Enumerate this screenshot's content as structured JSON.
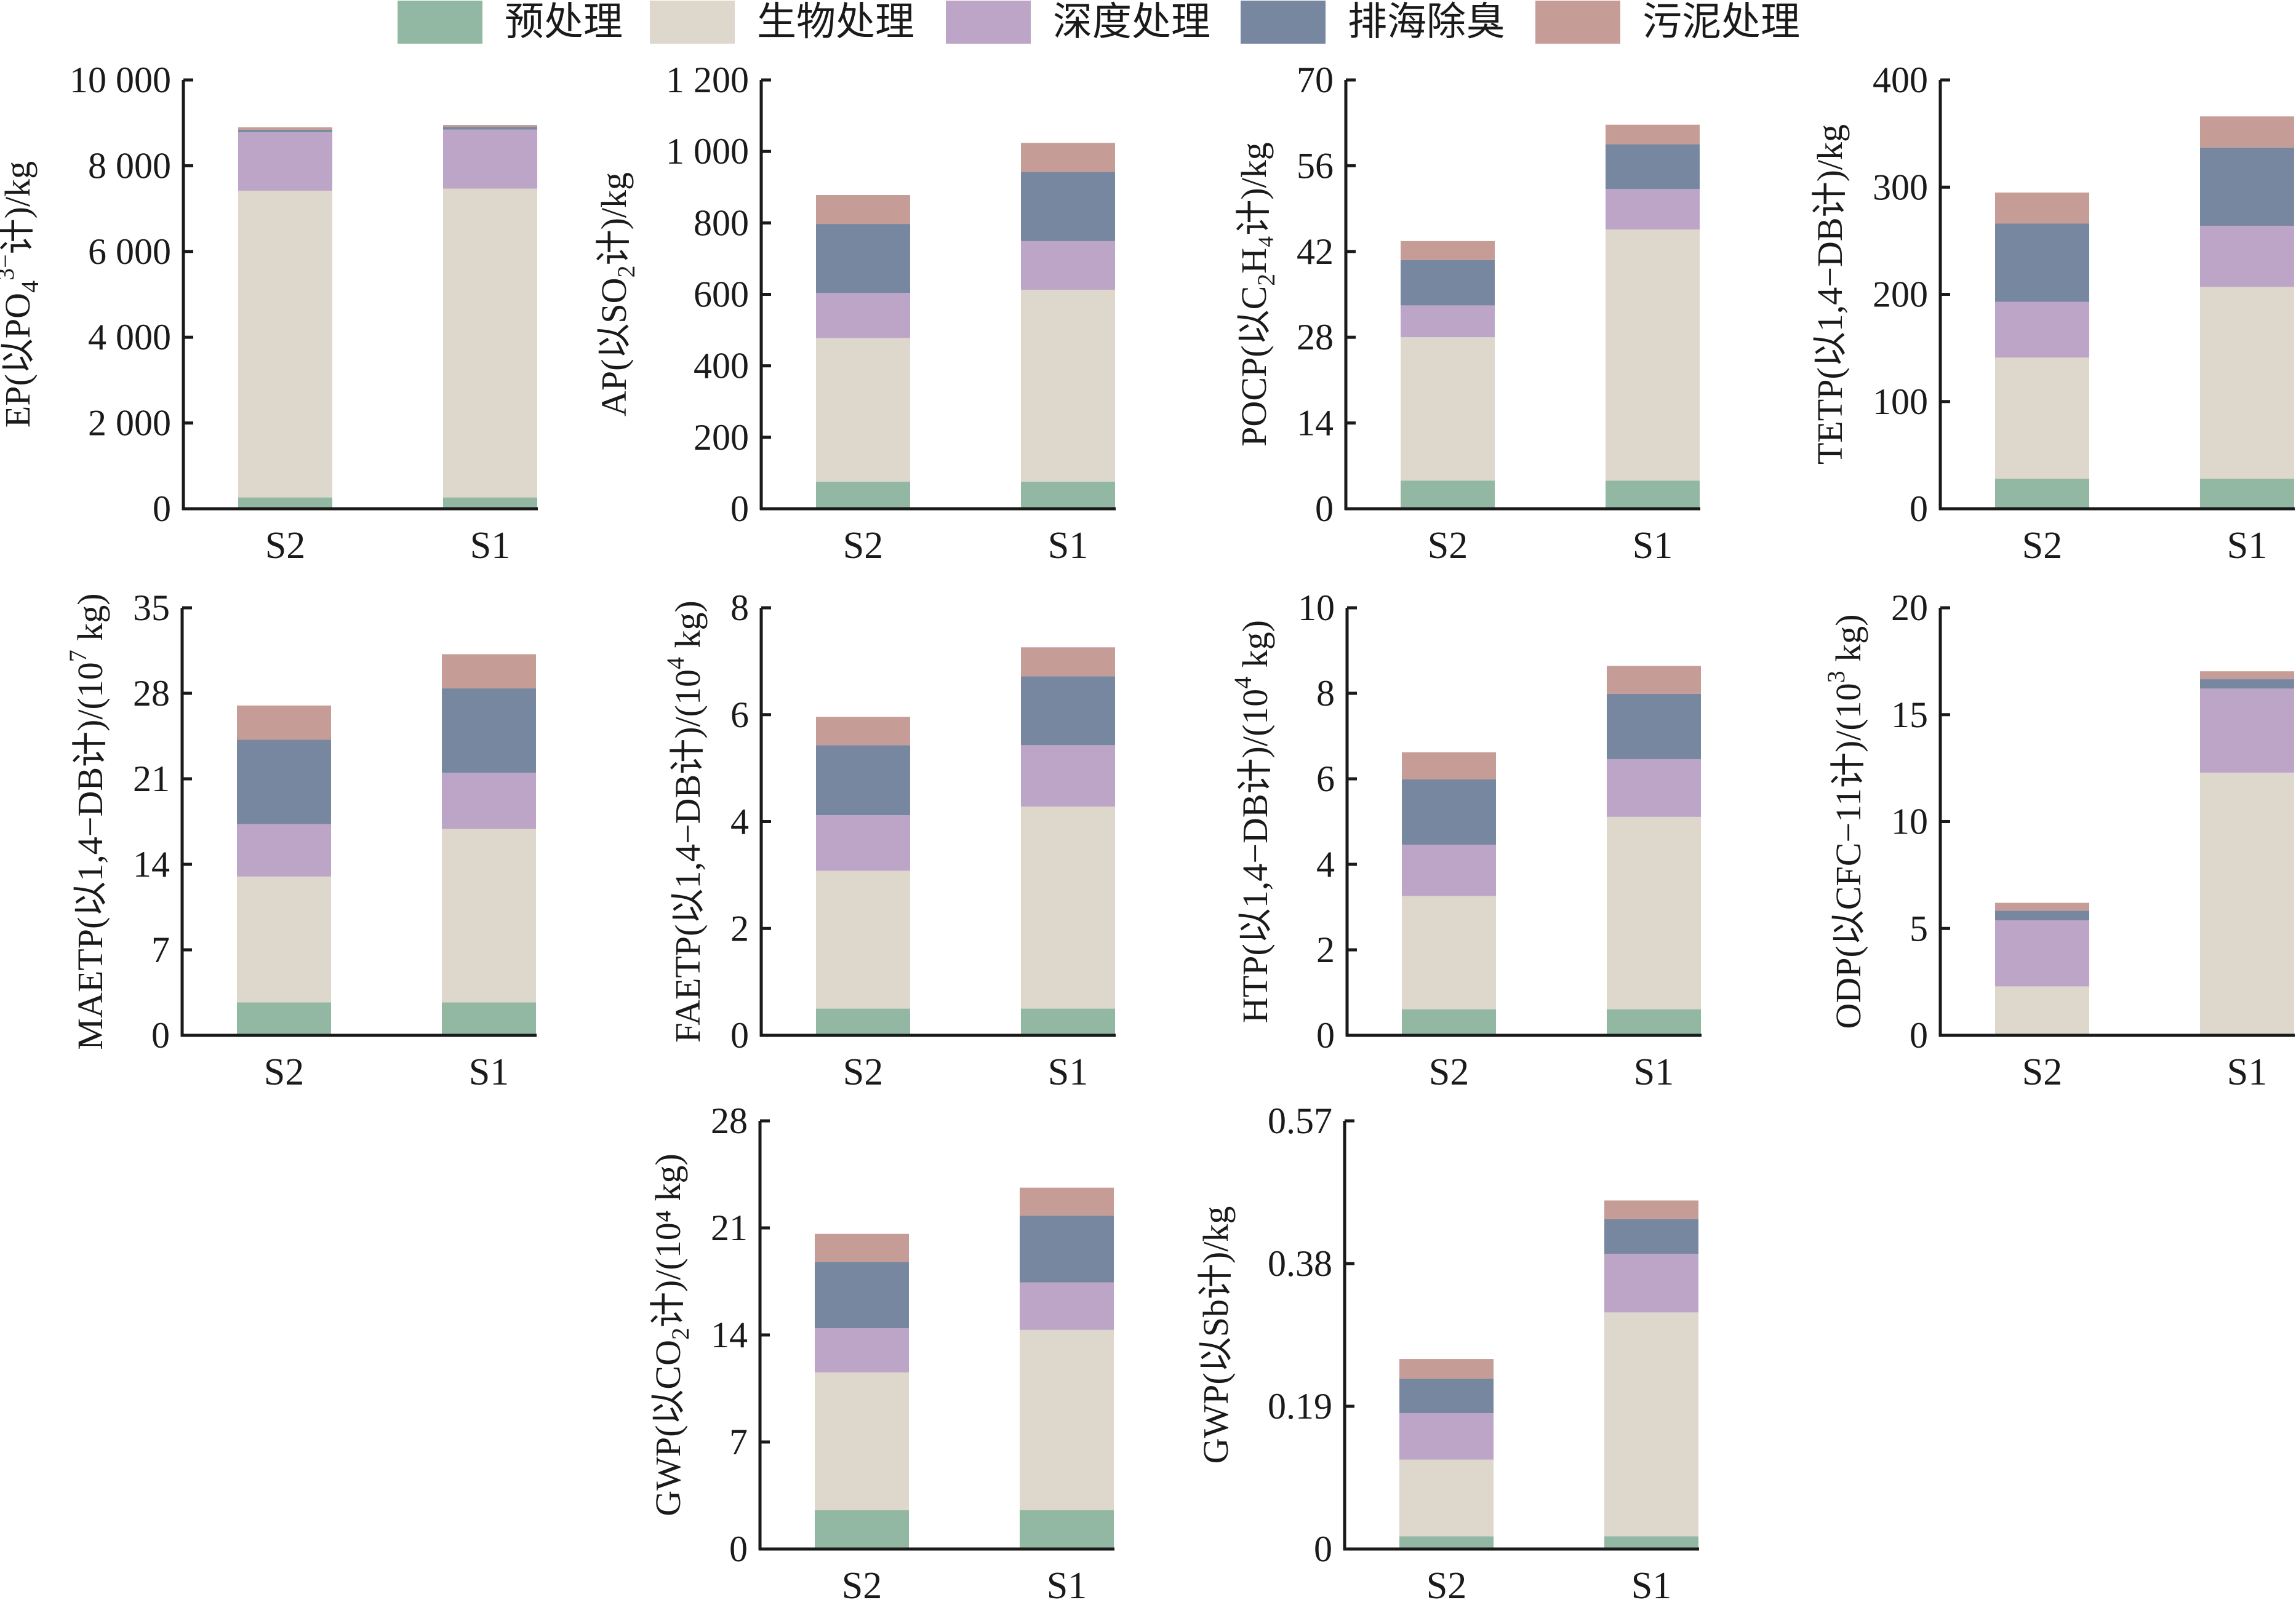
{
  "chart_data": {
    "type": "bar",
    "stacked": true,
    "legend": {
      "placement": "top",
      "entries": [
        {
          "name": "预处理",
          "color": "#92b8a3"
        },
        {
          "name": "生物处理",
          "color": "#ddd7cc"
        },
        {
          "name": "深度处理",
          "color": "#bca5c6"
        },
        {
          "name": "排海除臭",
          "color": "#76879f"
        },
        {
          "name": "污泥处理",
          "color": "#c59d96"
        }
      ]
    },
    "categories": [
      "S2",
      "S1"
    ],
    "panels": [
      {
        "id": "EP",
        "ylabel": {
          "prefix": "EP(以PO",
          "sub": "4",
          "sup": "3−",
          "suffix": "计)/kg"
        },
        "ylim": [
          0,
          10000
        ],
        "yticks": [
          "0",
          "2 000",
          "4 000",
          "6 000",
          "8 000",
          "10 000"
        ],
        "ytick_values": [
          0,
          2000,
          4000,
          6000,
          8000,
          10000
        ],
        "series": [
          {
            "name": "预处理",
            "values": [
              264,
              264
            ]
          },
          {
            "name": "生物处理",
            "values": [
              7154,
              7203
            ]
          },
          {
            "name": "深度处理",
            "values": [
              1370,
              1378
            ]
          },
          {
            "name": "排海除臭",
            "values": [
              49,
              58
            ]
          },
          {
            "name": "污泥处理",
            "values": [
              58,
              49
            ]
          }
        ]
      },
      {
        "id": "AP",
        "ylabel": {
          "prefix": "AP(以SO",
          "sub": "2",
          "sup": "",
          "suffix": "计)/kg"
        },
        "ylim": [
          0,
          1200
        ],
        "yticks": [
          "0",
          "200",
          "400",
          "600",
          "800",
          "1 000",
          "1 200"
        ],
        "ytick_values": [
          0,
          200,
          400,
          600,
          800,
          1000,
          1200
        ],
        "series": [
          {
            "name": "预处理",
            "values": [
              76,
              76
            ]
          },
          {
            "name": "生物处理",
            "values": [
              402,
              537
            ]
          },
          {
            "name": "深度处理",
            "values": [
              126,
              136
            ]
          },
          {
            "name": "排海除臭",
            "values": [
              193,
              194
            ]
          },
          {
            "name": "污泥处理",
            "values": [
              81,
              81
            ]
          }
        ]
      },
      {
        "id": "POCP",
        "ylabel": {
          "prefix": "POCP(以C",
          "sub": "2",
          "sup": "",
          "suffix": "H₄计)/kg"
        },
        "ylim": [
          0,
          70
        ],
        "yticks": [
          "0",
          "14",
          "28",
          "42",
          "56",
          "70"
        ],
        "ytick_values": [
          0,
          14,
          28,
          42,
          56,
          70
        ],
        "series": [
          {
            "name": "预处理",
            "values": [
              4.6,
              4.6
            ]
          },
          {
            "name": "生物处理",
            "values": [
              23.4,
              41.0
            ]
          },
          {
            "name": "深度处理",
            "values": [
              5.2,
              6.6
            ]
          },
          {
            "name": "排海除臭",
            "values": [
              7.4,
              7.3
            ]
          },
          {
            "name": "污泥处理",
            "values": [
              3.1,
              3.2
            ]
          }
        ]
      },
      {
        "id": "TETP",
        "ylabel": {
          "prefix": "TETP(以1,4−DB计)/kg",
          "sub": "",
          "sup": "",
          "suffix": ""
        },
        "ylim": [
          0,
          400
        ],
        "yticks": [
          "0",
          "100",
          "200",
          "300",
          "400"
        ],
        "ytick_values": [
          0,
          100,
          200,
          300,
          400
        ],
        "series": [
          {
            "name": "预处理",
            "values": [
              28,
              28
            ]
          },
          {
            "name": "生物处理",
            "values": [
              113,
              179
            ]
          },
          {
            "name": "深度处理",
            "values": [
              52,
              57
            ]
          },
          {
            "name": "排海除臭",
            "values": [
              73,
              73
            ]
          },
          {
            "name": "污泥处理",
            "values": [
              29,
              29
            ]
          }
        ]
      },
      {
        "id": "MAETP",
        "ylabel": {
          "prefix": "MAETP(以1,4−DB计)/(10",
          "sub": "",
          "sup": "7",
          "suffix": " kg)"
        },
        "ylim": [
          0,
          35
        ],
        "yticks": [
          "0",
          "7",
          "14",
          "21",
          "28",
          "35"
        ],
        "ytick_values": [
          0,
          7,
          14,
          21,
          28,
          35
        ],
        "series": [
          {
            "name": "预处理",
            "values": [
              2.7,
              2.7
            ]
          },
          {
            "name": "生物处理",
            "values": [
              10.3,
              14.2
            ]
          },
          {
            "name": "深度处理",
            "values": [
              4.3,
              4.6
            ]
          },
          {
            "name": "排海除臭",
            "values": [
              6.9,
              6.9
            ]
          },
          {
            "name": "污泥处理",
            "values": [
              2.8,
              2.8
            ]
          }
        ]
      },
      {
        "id": "FAETP",
        "ylabel": {
          "prefix": "FAETP(以1,4−DB计)/(10",
          "sub": "",
          "sup": "4",
          "suffix": " kg)"
        },
        "ylim": [
          0,
          8
        ],
        "yticks": [
          "0",
          "2",
          "4",
          "6",
          "8"
        ],
        "ytick_values": [
          0,
          2,
          4,
          6,
          8
        ],
        "series": [
          {
            "name": "预处理",
            "values": [
              0.5,
              0.5
            ]
          },
          {
            "name": "生物处理",
            "values": [
              2.58,
              3.78
            ]
          },
          {
            "name": "深度处理",
            "values": [
              1.04,
              1.15
            ]
          },
          {
            "name": "排海除臭",
            "values": [
              1.31,
              1.29
            ]
          },
          {
            "name": "污泥处理",
            "values": [
              0.53,
              0.54
            ]
          }
        ]
      },
      {
        "id": "HTP",
        "ylabel": {
          "prefix": "HTP(以1,4−DB计)/(10",
          "sub": "",
          "sup": "4",
          "suffix": " kg)"
        },
        "ylim": [
          0,
          10
        ],
        "yticks": [
          "0",
          "2",
          "4",
          "6",
          "8",
          "10"
        ],
        "ytick_values": [
          0,
          2,
          4,
          6,
          8,
          10
        ],
        "series": [
          {
            "name": "预处理",
            "values": [
              0.61,
              0.61
            ]
          },
          {
            "name": "生物处理",
            "values": [
              2.65,
              4.5
            ]
          },
          {
            "name": "深度处理",
            "values": [
              1.2,
              1.35
            ]
          },
          {
            "name": "排海除臭",
            "values": [
              1.53,
              1.53
            ]
          },
          {
            "name": "污泥处理",
            "values": [
              0.63,
              0.65
            ]
          }
        ]
      },
      {
        "id": "ODP",
        "ylabel": {
          "prefix": "ODP(以CFC−11计)/(10",
          "sub": "",
          "sup": "3",
          "suffix": " kg)"
        },
        "ylim": [
          0,
          20
        ],
        "yticks": [
          "0",
          "5",
          "10",
          "15",
          "20"
        ],
        "ytick_values": [
          0,
          5,
          10,
          15,
          20
        ],
        "series": [
          {
            "name": "预处理",
            "values": [
              0.08,
              0.08
            ]
          },
          {
            "name": "生物处理",
            "values": [
              2.21,
              12.21
            ]
          },
          {
            "name": "深度处理",
            "values": [
              3.09,
              3.93
            ]
          },
          {
            "name": "排海除臭",
            "values": [
              0.45,
              0.44
            ]
          },
          {
            "name": "污泥处理",
            "values": [
              0.37,
              0.37
            ]
          }
        ]
      },
      {
        "id": "GWP",
        "ylabel": {
          "prefix": "GWP(以CO",
          "sub": "2",
          "sup": "",
          "suffix": "计)/(10⁴ kg)"
        },
        "ylim": [
          0,
          28
        ],
        "yticks": [
          "0",
          "7",
          "14",
          "21",
          "28"
        ],
        "ytick_values": [
          0,
          7,
          14,
          21,
          28
        ],
        "series": [
          {
            "name": "预处理",
            "values": [
              2.54,
              2.54
            ]
          },
          {
            "name": "生物处理",
            "values": [
              9.01,
              11.79
            ]
          },
          {
            "name": "深度处理",
            "values": [
              2.89,
              3.11
            ]
          },
          {
            "name": "排海除臭",
            "values": [
              4.34,
              4.36
            ]
          },
          {
            "name": "污泥处理",
            "values": [
              1.83,
              1.83
            ]
          }
        ]
      },
      {
        "id": "GWP-Sb",
        "ylabel": {
          "prefix": "GWP(以Sb计)/kg",
          "sub": "",
          "sup": "",
          "suffix": ""
        },
        "ylim": [
          0,
          0.57
        ],
        "yticks": [
          "0",
          "0.19",
          "0.38",
          "0.57"
        ],
        "ytick_values": [
          0,
          0.19,
          0.38,
          0.57
        ],
        "series": [
          {
            "name": "预处理",
            "values": [
              0.017,
              0.017
            ]
          },
          {
            "name": "生物处理",
            "values": [
              0.102,
              0.298
            ]
          },
          {
            "name": "深度处理",
            "values": [
              0.062,
              0.078
            ]
          },
          {
            "name": "排海除臭",
            "values": [
              0.046,
              0.046
            ]
          },
          {
            "name": "污泥处理",
            "values": [
              0.026,
              0.025
            ]
          }
        ]
      }
    ]
  }
}
